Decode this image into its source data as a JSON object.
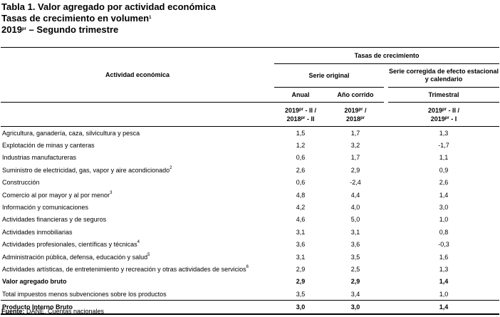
{
  "title": {
    "line1": "Tabla 1. Valor agregado por actividad económica",
    "line2": "Tasas de crecimiento en volumen",
    "line2_sup": "1",
    "line3_a": "2019",
    "line3_sup": "pr",
    "line3_b": " – Segundo trimestre"
  },
  "header": {
    "actividad": "Actividad económica",
    "tasas": "Tasas de crecimiento",
    "serie_original": "Serie original",
    "serie_corregida": "Serie corregida de efecto estacional y calendario",
    "anual": "Anual",
    "anio_corrido": "Año corrido",
    "trimestral": "Trimestral",
    "periodo_anual_a": "2019",
    "periodo_anual_a_sup": "pr",
    "periodo_anual_a_rest": " - II /",
    "periodo_anual_b": "2018",
    "periodo_anual_b_sup": "pr",
    "periodo_anual_b_rest": " - II",
    "periodo_corrido_a": "2019",
    "periodo_corrido_a_sup": "pr",
    "periodo_corrido_a_rest": " /",
    "periodo_corrido_b": "2018",
    "periodo_corrido_b_sup": "pr",
    "periodo_trim_a": "2019",
    "periodo_trim_a_sup": "pr",
    "periodo_trim_a_rest": " - II /",
    "periodo_trim_b": "2019",
    "periodo_trim_b_sup": "pr",
    "periodo_trim_b_rest": " - I"
  },
  "rows": [
    {
      "label": "Agricultura, ganadería, caza, silvicultura y pesca",
      "sup": "",
      "anual": "1,5",
      "corrido": "1,7",
      "trimestral": "1,3",
      "bold": false
    },
    {
      "label": "Explotación de minas y canteras",
      "sup": "",
      "anual": "1,2",
      "corrido": "3,2",
      "trimestral": "-1,7",
      "bold": false
    },
    {
      "label": "Industrias manufactureras",
      "sup": "",
      "anual": "0,6",
      "corrido": "1,7",
      "trimestral": "1,1",
      "bold": false
    },
    {
      "label": "Suministro de electricidad, gas, vapor y aire acondicionado",
      "sup": "2",
      "anual": "2,6",
      "corrido": "2,9",
      "trimestral": "0,9",
      "bold": false
    },
    {
      "label": "Construcción",
      "sup": "",
      "anual": "0,6",
      "corrido": "-2,4",
      "trimestral": "2,6",
      "bold": false
    },
    {
      "label": "Comercio al por mayor y al por menor",
      "sup": "3",
      "anual": "4,8",
      "corrido": "4,4",
      "trimestral": "1,4",
      "bold": false
    },
    {
      "label": "Información y comunicaciones",
      "sup": "",
      "anual": "4,2",
      "corrido": "4,0",
      "trimestral": "3,0",
      "bold": false
    },
    {
      "label": "Actividades financieras y de seguros",
      "sup": "",
      "anual": "4,6",
      "corrido": "5,0",
      "trimestral": "1,0",
      "bold": false
    },
    {
      "label": "Actividades inmobiliarias",
      "sup": "",
      "anual": "3,1",
      "corrido": "3,1",
      "trimestral": "0,8",
      "bold": false
    },
    {
      "label": "Actividades profesionales, científicas y técnicas",
      "sup": "4",
      "anual": "3,6",
      "corrido": "3,6",
      "trimestral": "-0,3",
      "bold": false
    },
    {
      "label": "Administración pública, defensa, educación y salud",
      "sup": "5",
      "anual": "3,1",
      "corrido": "3,5",
      "trimestral": "1,6",
      "bold": false
    },
    {
      "label": "Actividades artísticas, de entretenimiento y recreación y otras actividades de servicios",
      "sup": "6",
      "anual": "2,9",
      "corrido": "2,5",
      "trimestral": "1,3",
      "bold": false
    },
    {
      "label": "Valor agregado bruto",
      "sup": "",
      "anual": "2,9",
      "corrido": "2,9",
      "trimestral": "1,4",
      "bold": true
    },
    {
      "label": "Total impuestos menos subvenciones sobre los productos",
      "sup": "",
      "anual": "3,5",
      "corrido": "3,4",
      "trimestral": "1,0",
      "bold": false
    }
  ],
  "total": {
    "label": "Producto Interno Bruto",
    "anual": "3,0",
    "corrido": "3,0",
    "trimestral": "1,4"
  },
  "source": {
    "label": "Fuente:",
    "text": " DANE, Cuentas nacionales"
  }
}
